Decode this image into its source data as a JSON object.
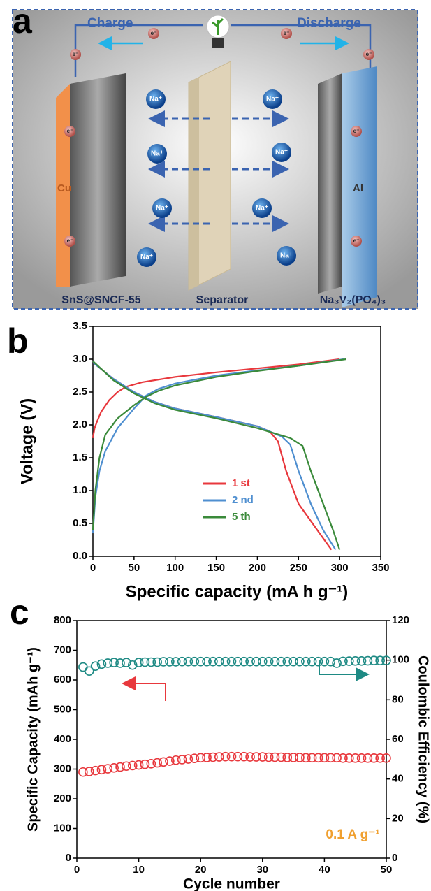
{
  "panel_labels": [
    "a",
    "b",
    "c"
  ],
  "diagram": {
    "charge_label": "Charge",
    "discharge_label": "Discharge",
    "electron_label": "e⁻",
    "ion_label": "Na⁺",
    "left_collector": "Cu",
    "right_collector": "Al",
    "anode_label": "SnS@SNCF-55",
    "separator_label": "Separator",
    "cathode_label": "Na₃V₂(PO₄)₃"
  },
  "chart_data": [
    {
      "type": "line",
      "x_label": "Specific capacity (mA h g⁻¹)",
      "y_label": "Voltage (V)",
      "xlim": [
        0,
        350
      ],
      "xticks": [
        0,
        50,
        100,
        150,
        200,
        250,
        300,
        350
      ],
      "ylim": [
        0,
        3.5
      ],
      "yticks": [
        {
          "value": 0,
          "label": "0.0"
        },
        0.5,
        {
          "value": 1,
          "label": "1.0"
        },
        1.5,
        {
          "value": 2,
          "label": "2.0"
        },
        2.5,
        {
          "value": 3,
          "label": "3.0"
        },
        3.5
      ],
      "legend": "center",
      "series": [
        {
          "name": "1 st",
          "color": "#e8383d",
          "x": [
            0,
            2,
            5,
            10,
            20,
            30,
            40,
            60,
            100,
            150,
            200,
            250,
            300,
            null,
            0,
            10,
            25,
            50,
            75,
            100,
            150,
            200,
            215,
            225,
            235,
            250,
            270,
            290
          ],
          "values": [
            1.8,
            1.95,
            2.05,
            2.2,
            2.38,
            2.5,
            2.58,
            2.65,
            2.73,
            2.8,
            2.86,
            2.92,
            3.0,
            null,
            2.95,
            2.85,
            2.7,
            2.5,
            2.35,
            2.25,
            2.12,
            1.98,
            1.9,
            1.75,
            1.3,
            0.8,
            0.45,
            0.1
          ]
        },
        {
          "name": "2 nd",
          "color": "#4f8fd0",
          "x": [
            0,
            3,
            8,
            15,
            30,
            50,
            65,
            80,
            100,
            150,
            200,
            250,
            305,
            null,
            0,
            25,
            50,
            75,
            100,
            150,
            200,
            230,
            240,
            250,
            265,
            280,
            295
          ],
          "values": [
            0.35,
            0.9,
            1.3,
            1.6,
            1.95,
            2.25,
            2.45,
            2.55,
            2.63,
            2.75,
            2.83,
            2.9,
            3.0,
            null,
            2.95,
            2.7,
            2.5,
            2.35,
            2.25,
            2.12,
            1.98,
            1.82,
            1.7,
            1.3,
            0.8,
            0.4,
            0.1
          ]
        },
        {
          "name": "5 th",
          "color": "#3a8a3a",
          "x": [
            0,
            3,
            8,
            15,
            30,
            50,
            65,
            80,
            100,
            150,
            200,
            250,
            308,
            null,
            0,
            25,
            50,
            75,
            100,
            150,
            200,
            240,
            255,
            265,
            280,
            292,
            300
          ],
          "values": [
            0.4,
            1.0,
            1.5,
            1.85,
            2.1,
            2.3,
            2.43,
            2.52,
            2.6,
            2.73,
            2.82,
            2.9,
            3.0,
            null,
            2.97,
            2.68,
            2.48,
            2.33,
            2.23,
            2.1,
            1.95,
            1.8,
            1.68,
            1.3,
            0.8,
            0.4,
            0.1
          ]
        }
      ]
    },
    {
      "type": "scatter",
      "x_label": "Cycle number",
      "y_label": "Specific Capacity (mAh g⁻¹)",
      "y2_label": "Coulombic Efficiency (%)",
      "annotation": "0.1 A g⁻¹",
      "annotation_color": "#f0a030",
      "xlim": [
        0,
        50
      ],
      "xticks": [
        0,
        10,
        20,
        30,
        40,
        50
      ],
      "ylim": [
        0,
        800
      ],
      "yticks": [
        0,
        100,
        200,
        300,
        400,
        500,
        600,
        700,
        800
      ],
      "y2lim": [
        0,
        120
      ],
      "y2ticks": [
        0,
        20,
        40,
        60,
        80,
        100,
        120
      ],
      "x": [
        1,
        2,
        3,
        4,
        5,
        6,
        7,
        8,
        9,
        10,
        11,
        12,
        13,
        14,
        15,
        16,
        17,
        18,
        19,
        20,
        21,
        22,
        23,
        24,
        25,
        26,
        27,
        28,
        29,
        30,
        31,
        32,
        33,
        34,
        35,
        36,
        37,
        38,
        39,
        40,
        41,
        42,
        43,
        44,
        45,
        46,
        47,
        48,
        49,
        50
      ],
      "series": [
        {
          "color": "#e8383d",
          "axis": "y",
          "values": [
            290,
            292,
            295,
            298,
            301,
            304,
            307,
            310,
            312,
            314,
            316,
            318,
            321,
            324,
            327,
            330,
            332,
            334,
            336,
            338,
            339,
            340,
            341,
            342,
            342,
            342,
            342,
            341,
            341,
            341,
            340,
            340,
            340,
            339,
            339,
            339,
            338,
            338,
            338,
            338,
            338,
            338,
            337,
            337,
            337,
            337,
            337,
            337,
            337,
            337
          ]
        },
        {
          "color": "#1e8a84",
          "axis": "y2",
          "values": [
            96.5,
            94.5,
            97,
            98,
            98.5,
            98.8,
            98.5,
            98.8,
            97.5,
            98.8,
            99,
            99,
            99,
            99.2,
            99.2,
            99.2,
            99.3,
            99.3,
            99.3,
            99.3,
            99.3,
            99.3,
            99.3,
            99.3,
            99.3,
            99.3,
            99.3,
            99.3,
            99.3,
            99.3,
            99.3,
            99.3,
            99.3,
            99.3,
            99.3,
            99.3,
            99.3,
            99.3,
            99.3,
            99.3,
            99.3,
            98.5,
            99.4,
            99.5,
            99.6,
            99.6,
            99.7,
            99.8,
            99.8,
            99.8
          ]
        }
      ]
    }
  ]
}
